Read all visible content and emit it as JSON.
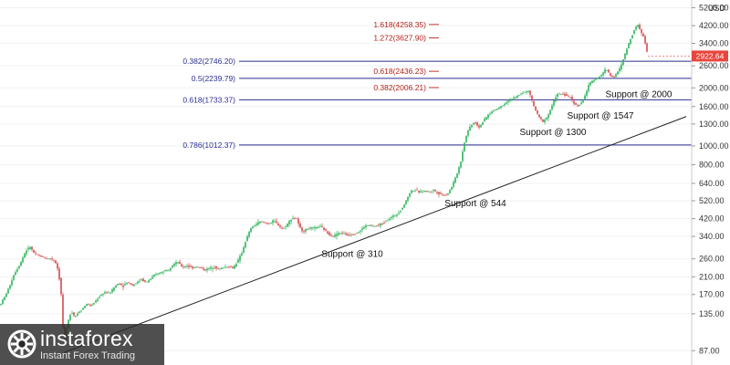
{
  "chart_data": {
    "type": "candlestick",
    "scale": "log",
    "currency_label": "USD",
    "ylim": [
      80,
      5400
    ],
    "y_ticks": [
      "5200.00",
      "4200.00",
      "3400.00",
      "2600.00",
      "2000.00",
      "1600.00",
      "1300.00",
      "1000.00",
      "800.00",
      "640.00",
      "520.00",
      "420.00",
      "340.00",
      "260.00",
      "210.00",
      "170.00",
      "135.00",
      "87.00"
    ],
    "current_price": {
      "label": "2922.64",
      "value": 2922.64,
      "color": "#e8453c"
    },
    "fib_retracements": [
      {
        "label": "0.382(2746.20)",
        "value": 2746.2
      },
      {
        "label": "0.5(2239.79)",
        "value": 2239.79
      },
      {
        "label": "0.618(1733.37)",
        "value": 1733.37
      },
      {
        "label": "0.786(1012.37)",
        "value": 1012.37
      }
    ],
    "fib_extensions": [
      {
        "label": "1.618(4258.35)",
        "value": 4258.35
      },
      {
        "label": "1.272(3627.90)",
        "value": 3627.9
      },
      {
        "label": "0.618(2436.23)",
        "value": 2436.23
      },
      {
        "label": "0.382(2006.21)",
        "value": 2006.21
      }
    ],
    "trendline": {
      "start_value": 85,
      "end_value": 1420
    },
    "supports": [
      {
        "label": "Support @ 310",
        "value": 310
      },
      {
        "label": "Support @ 544",
        "value": 544
      },
      {
        "label": "Support @ 1300",
        "value": 1300
      },
      {
        "label": "Support @ 1547",
        "value": 1547
      },
      {
        "label": "Support @ 2000",
        "value": 2000
      }
    ],
    "price_path": [
      [
        0,
        150
      ],
      [
        5,
        165
      ],
      [
        10,
        185
      ],
      [
        15,
        215
      ],
      [
        22,
        245
      ],
      [
        28,
        285
      ],
      [
        33,
        300
      ],
      [
        38,
        275
      ],
      [
        43,
        270
      ],
      [
        50,
        262
      ],
      [
        56,
        260
      ],
      [
        60,
        255
      ],
      [
        64,
        225
      ],
      [
        67,
        170
      ],
      [
        70,
        95
      ],
      [
        74,
        120
      ],
      [
        78,
        140
      ],
      [
        82,
        130
      ],
      [
        86,
        138
      ],
      [
        90,
        143
      ],
      [
        95,
        152
      ],
      [
        100,
        148
      ],
      [
        105,
        158
      ],
      [
        110,
        168
      ],
      [
        115,
        175
      ],
      [
        120,
        172
      ],
      [
        125,
        185
      ],
      [
        130,
        195
      ],
      [
        135,
        188
      ],
      [
        140,
        198
      ],
      [
        145,
        190
      ],
      [
        150,
        196
      ],
      [
        155,
        204
      ],
      [
        160,
        196
      ],
      [
        165,
        205
      ],
      [
        170,
        215
      ],
      [
        175,
        220
      ],
      [
        180,
        226
      ],
      [
        185,
        230
      ],
      [
        190,
        244
      ],
      [
        195,
        250
      ],
      [
        200,
        235
      ],
      [
        205,
        240
      ],
      [
        210,
        233
      ],
      [
        215,
        238
      ],
      [
        220,
        233
      ],
      [
        225,
        228
      ],
      [
        230,
        233
      ],
      [
        235,
        236
      ],
      [
        240,
        230
      ],
      [
        245,
        235
      ],
      [
        250,
        238
      ],
      [
        255,
        233
      ],
      [
        260,
        250
      ],
      [
        265,
        280
      ],
      [
        270,
        330
      ],
      [
        275,
        375
      ],
      [
        280,
        392
      ],
      [
        285,
        405
      ],
      [
        290,
        400
      ],
      [
        295,
        395
      ],
      [
        300,
        410
      ],
      [
        305,
        390
      ],
      [
        310,
        370
      ],
      [
        315,
        395
      ],
      [
        320,
        425
      ],
      [
        325,
        420
      ],
      [
        328,
        380
      ],
      [
        332,
        360
      ],
      [
        338,
        375
      ],
      [
        345,
        375
      ],
      [
        350,
        385
      ],
      [
        355,
        370
      ],
      [
        360,
        350
      ],
      [
        365,
        340
      ],
      [
        370,
        352
      ],
      [
        375,
        355
      ],
      [
        380,
        345
      ],
      [
        385,
        348
      ],
      [
        390,
        353
      ],
      [
        395,
        365
      ],
      [
        400,
        385
      ],
      [
        405,
        388
      ],
      [
        410,
        383
      ],
      [
        415,
        390
      ],
      [
        420,
        398
      ],
      [
        425,
        415
      ],
      [
        430,
        430
      ],
      [
        435,
        445
      ],
      [
        440,
        470
      ],
      [
        445,
        520
      ],
      [
        450,
        585
      ],
      [
        455,
        590
      ],
      [
        460,
        575
      ],
      [
        465,
        585
      ],
      [
        470,
        580
      ],
      [
        475,
        590
      ],
      [
        480,
        570
      ],
      [
        485,
        560
      ],
      [
        490,
        558
      ],
      [
        495,
        615
      ],
      [
        500,
        700
      ],
      [
        505,
        830
      ],
      [
        508,
        1000
      ],
      [
        512,
        1180
      ],
      [
        516,
        1280
      ],
      [
        520,
        1330
      ],
      [
        525,
        1250
      ],
      [
        530,
        1350
      ],
      [
        535,
        1450
      ],
      [
        540,
        1520
      ],
      [
        545,
        1560
      ],
      [
        550,
        1620
      ],
      [
        555,
        1690
      ],
      [
        560,
        1750
      ],
      [
        565,
        1780
      ],
      [
        570,
        1860
      ],
      [
        575,
        1900
      ],
      [
        580,
        1920
      ],
      [
        582,
        1760
      ],
      [
        586,
        1560
      ],
      [
        590,
        1420
      ],
      [
        595,
        1340
      ],
      [
        600,
        1420
      ],
      [
        605,
        1620
      ],
      [
        610,
        1850
      ],
      [
        615,
        1860
      ],
      [
        620,
        1830
      ],
      [
        625,
        1780
      ],
      [
        628,
        1700
      ],
      [
        632,
        1600
      ],
      [
        638,
        1680
      ],
      [
        642,
        1880
      ],
      [
        646,
        2100
      ],
      [
        650,
        2200
      ],
      [
        655,
        2250
      ],
      [
        660,
        2350
      ],
      [
        662,
        2470
      ],
      [
        665,
        2480
      ],
      [
        668,
        2350
      ],
      [
        672,
        2250
      ],
      [
        676,
        2380
      ],
      [
        680,
        2550
      ],
      [
        684,
        2900
      ],
      [
        688,
        3300
      ],
      [
        692,
        3700
      ],
      [
        696,
        4100
      ],
      [
        699,
        4250
      ],
      [
        702,
        3950
      ],
      [
        706,
        3600
      ],
      [
        710,
        2922
      ]
    ]
  },
  "branding": {
    "name": "instaforex",
    "tagline": "Instant Forex Trading"
  }
}
